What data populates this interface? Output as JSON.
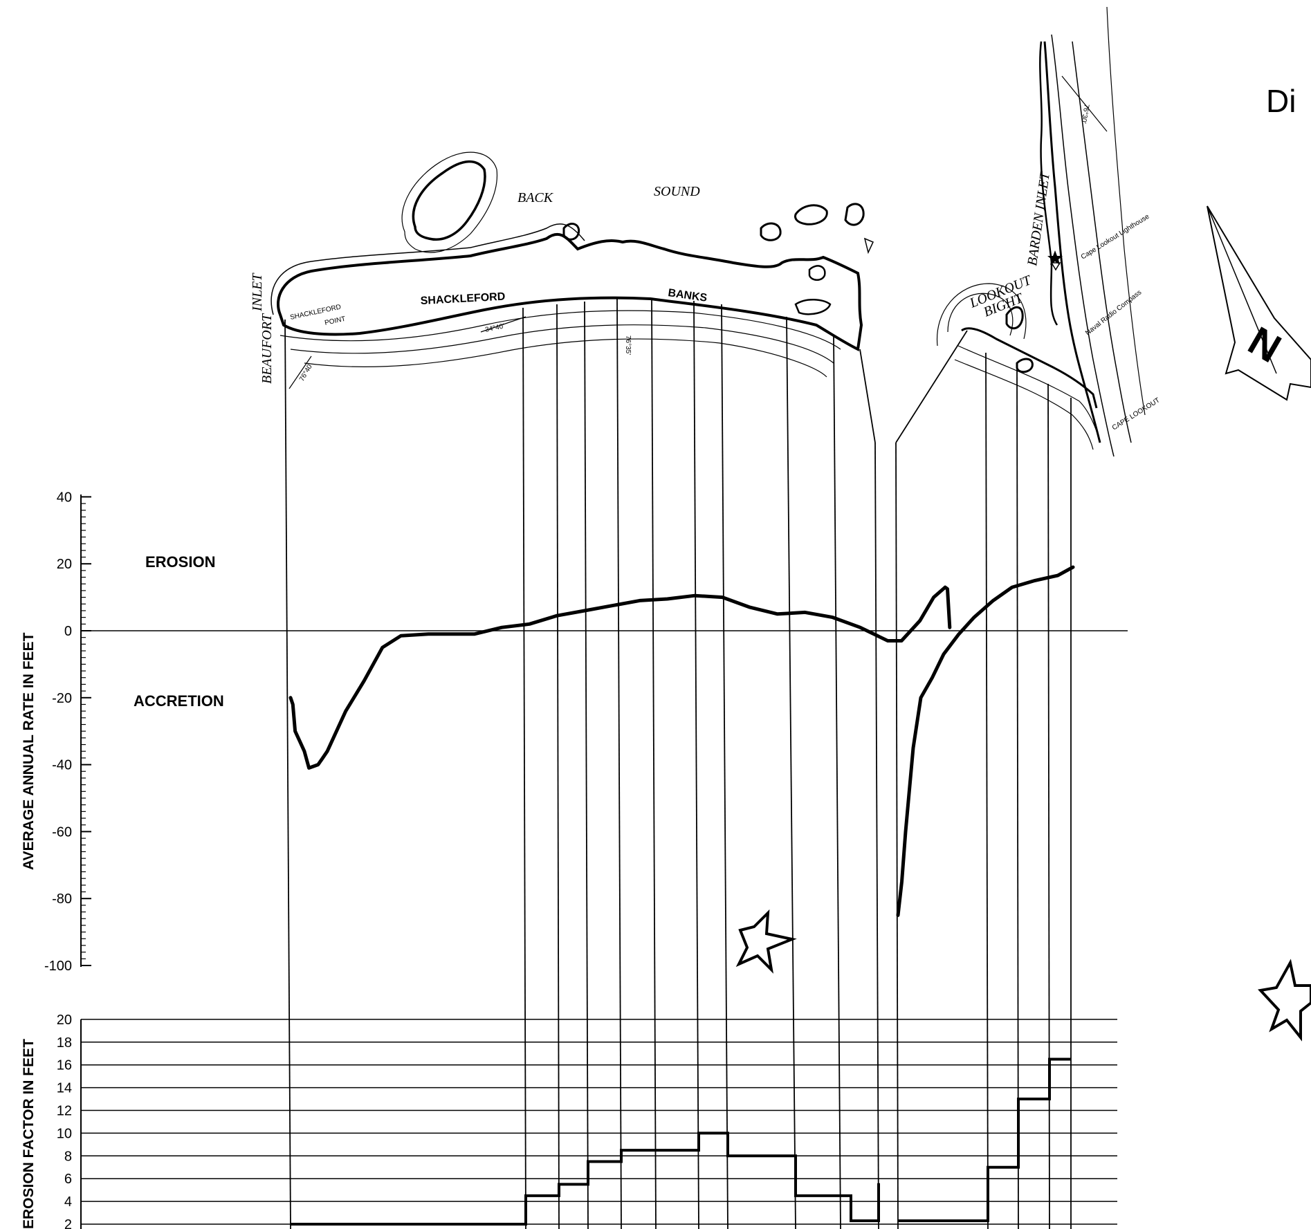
{
  "header": {
    "title_fragment": "Di"
  },
  "map": {
    "labels": {
      "back": "BACK",
      "sound": "SOUND",
      "shackleford": "SHACKLEFORD",
      "banks": "BANKS",
      "shackleford_point_1": "SHACKLEFORD",
      "shackleford_point_2": "POINT",
      "beaufort": "BEAUFORT",
      "inlet": "INLET",
      "lat_34_40": "34°40'",
      "lon_76_40": "76°40'",
      "lon_76_35": "76°35'",
      "lon_76_30": "76°30'",
      "lookout_1": "LOOKOUT",
      "lookout_2": "BIGHT",
      "barden_inlet": "BARDEN INLET",
      "cape_lookout_lighthouse": "Cape Lookout Lighthouse",
      "naval_radio_compass": "Naval Radio Compass",
      "cape_lookout": "CAPE LOOKOUT"
    },
    "north_letter": "N"
  },
  "chart_data": [
    {
      "type": "line",
      "ylabel": "AVERAGE ANNUAL RATE IN FEET",
      "ylim": [
        -100,
        40
      ],
      "yticks": [
        "40",
        "20",
        "0",
        "-20",
        "-40",
        "-60",
        "-80",
        "-100"
      ],
      "zone_labels": {
        "positive": "EROSION",
        "negative": "ACCRETION"
      },
      "series": [
        {
          "segment": "shackleford",
          "points": [
            [
              0,
              -20
            ],
            [
              0.5,
              -22
            ],
            [
              1,
              -30
            ],
            [
              2,
              -33
            ],
            [
              3,
              -36
            ],
            [
              4,
              -41
            ],
            [
              6,
              -40
            ],
            [
              7,
              -38
            ],
            [
              8,
              -36
            ],
            [
              10,
              -30
            ],
            [
              12,
              -24
            ],
            [
              16,
              -15
            ],
            [
              20,
              -5
            ],
            [
              24,
              -1.5
            ],
            [
              30,
              -1
            ],
            [
              34,
              -1
            ],
            [
              40,
              -1
            ],
            [
              46,
              1
            ],
            [
              52,
              2
            ],
            [
              58,
              4.5
            ],
            [
              64,
              6
            ],
            [
              70,
              7.5
            ],
            [
              76,
              9
            ],
            [
              82,
              9.5
            ],
            [
              88,
              10.5
            ],
            [
              94,
              10
            ],
            [
              100,
              7
            ],
            [
              106,
              5
            ],
            [
              112,
              5.5
            ],
            [
              118,
              4
            ],
            [
              124,
              1
            ],
            [
              130,
              -3
            ],
            [
              133,
              -3
            ],
            [
              137,
              3
            ],
            [
              140,
              10
            ],
            [
              142.5,
              13
            ],
            [
              143,
              12.5
            ],
            [
              143.5,
              1
            ]
          ]
        },
        {
          "segment": "lookout",
          "points": [
            [
              0,
              -85
            ],
            [
              1,
              -75
            ],
            [
              2,
              -60
            ],
            [
              4,
              -35
            ],
            [
              6,
              -20
            ],
            [
              9,
              -14
            ],
            [
              12,
              -7
            ],
            [
              16,
              -1
            ],
            [
              20,
              4
            ],
            [
              25,
              9
            ],
            [
              30,
              13
            ],
            [
              36,
              15
            ],
            [
              42,
              16.5
            ],
            [
              46,
              19
            ]
          ]
        }
      ]
    },
    {
      "type": "bar",
      "ylabel": "EROSION FACTOR IN FEET",
      "ylim": [
        2,
        20
      ],
      "yticks": [
        "20",
        "18",
        "16",
        "14",
        "12",
        "10",
        "8",
        "6",
        "4",
        "2"
      ],
      "shackleford_values": [
        2,
        4.5,
        5.5,
        7.5,
        8.5,
        8.5,
        10,
        8,
        4.5,
        4.5,
        2.3,
        5.6,
        5.6
      ],
      "lookout_values": [
        2.3,
        7,
        13,
        16.5
      ]
    }
  ]
}
